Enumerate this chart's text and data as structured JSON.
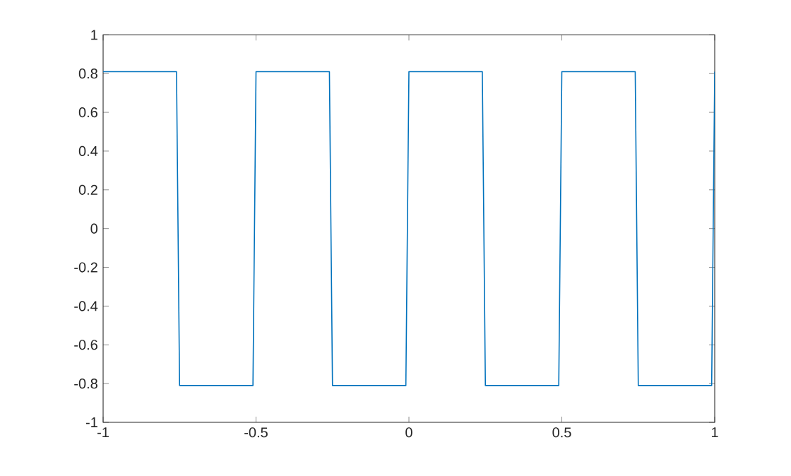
{
  "chart_data": {
    "type": "line",
    "x": [
      -1,
      -0.76,
      -0.75,
      -0.51,
      -0.5,
      -0.26,
      -0.25,
      -0.01,
      0,
      0.24,
      0.25,
      0.49,
      0.5,
      0.74,
      0.75,
      0.99,
      1
    ],
    "series": [
      {
        "color": "#0072bd",
        "values": [
          0.81,
          0.81,
          -0.81,
          -0.81,
          0.81,
          0.81,
          -0.81,
          -0.81,
          0.81,
          0.81,
          -0.81,
          -0.81,
          0.81,
          0.81,
          -0.81,
          -0.81,
          0.81
        ]
      }
    ],
    "xlim": [
      -1,
      1
    ],
    "ylim": [
      -1,
      1
    ],
    "xticks": [
      -1,
      -0.5,
      0,
      0.5,
      1
    ],
    "yticks": [
      -1,
      -0.8,
      -0.6,
      -0.4,
      -0.2,
      0,
      0.2,
      0.4,
      0.6,
      0.8,
      1
    ],
    "grid": false,
    "marker": "none",
    "line_style": "solid"
  }
}
